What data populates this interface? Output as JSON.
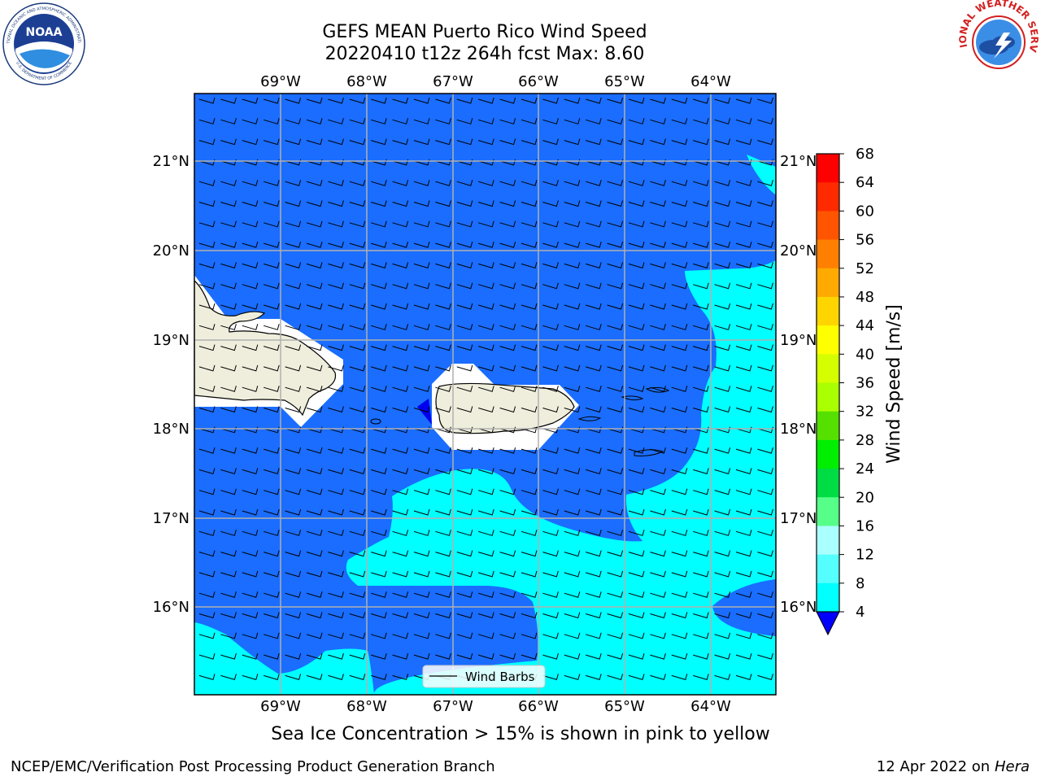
{
  "title": {
    "line1": "GEFS MEAN Puerto Rico Wind Speed",
    "line2": "20220410 t12z 264h fcst   Max: 8.60"
  },
  "map": {
    "lon_labels": [
      "69°W",
      "68°W",
      "67°W",
      "66°W",
      "65°W",
      "64°W"
    ],
    "lat_labels": [
      "21°N",
      "20°N",
      "19°N",
      "18°N",
      "17°N",
      "16°N"
    ],
    "legend_label": "Wind Barbs",
    "ocean_color_low": "#1a6dff",
    "ocean_color_high": "#00ffff",
    "land_color": "#efeedc"
  },
  "colorbar": {
    "label": "Wind Speed [m/s]",
    "ticks": [
      "68",
      "64",
      "60",
      "56",
      "52",
      "48",
      "44",
      "40",
      "36",
      "32",
      "28",
      "24",
      "20",
      "16",
      "12",
      "8",
      "4"
    ],
    "colors": [
      "#ff0000",
      "#ff2a00",
      "#ff5500",
      "#ff8000",
      "#ffaa00",
      "#ffd500",
      "#ffff00",
      "#d5ff00",
      "#aaff00",
      "#55e000",
      "#00ee00",
      "#00dd44",
      "#55ff88",
      "#aaffff",
      "#55ffff",
      "#00ffff",
      "#1a6dff"
    ],
    "under_color": "#0000ff"
  },
  "ice_note": "Sea Ice Concentration > 15% is shown in pink to yellow",
  "footer": {
    "left": "NCEP/EMC/Verification Post Processing Product Generation Branch",
    "right_prefix": "12 Apr 2022 on ",
    "right_machine": "Hera"
  },
  "logos": {
    "noaa_text": "NOAA",
    "noaa_ring_top": "NATIONAL OCEANIC AND ATMOSPHERIC ADMINISTRATION",
    "noaa_ring_bottom": "U.S. DEPARTMENT OF COMMERCE",
    "nws_ring": "NATIONAL WEATHER SERVICE"
  }
}
